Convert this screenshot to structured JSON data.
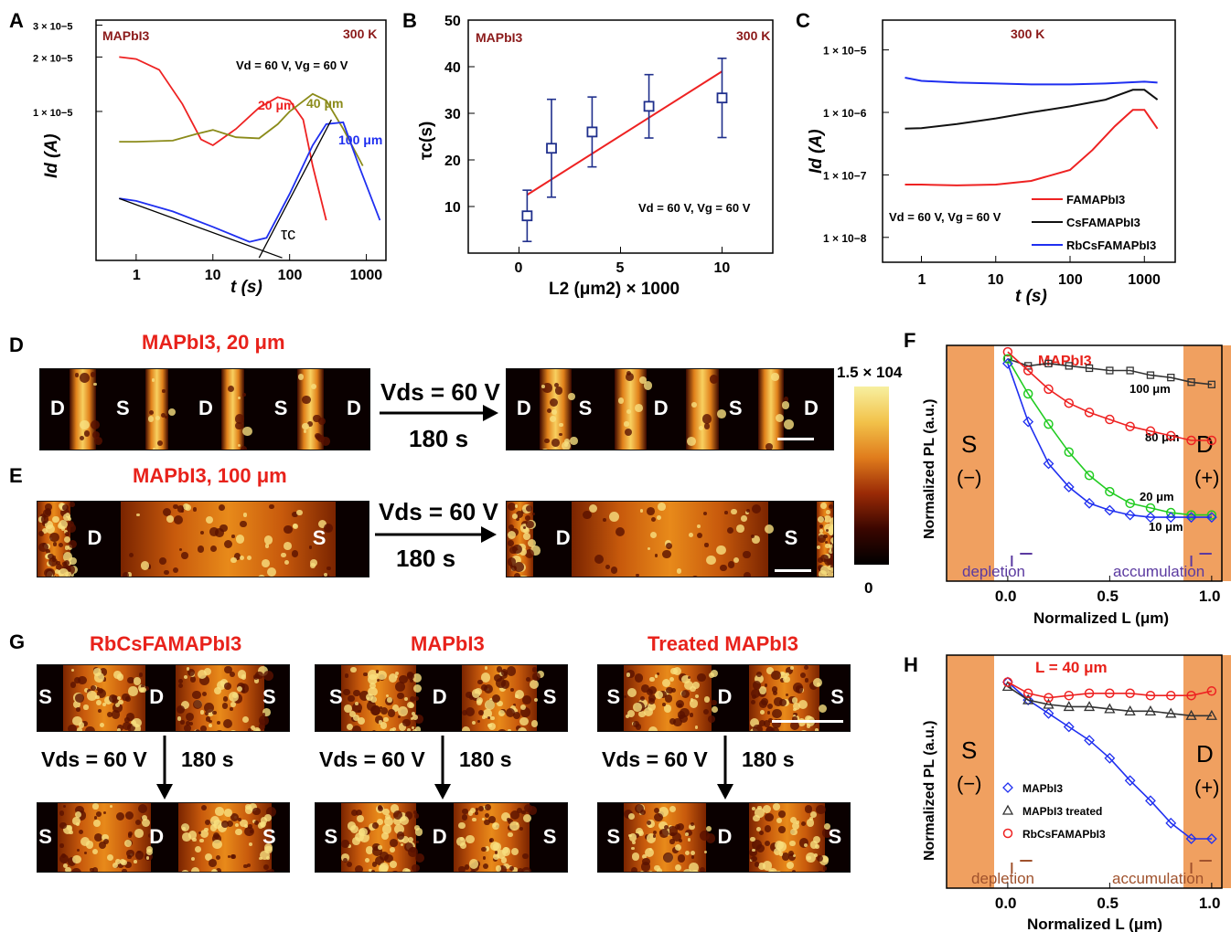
{
  "colors": {
    "red": "#ee2222",
    "olive": "#8b8b1a",
    "blue": "#1f2ff0",
    "black": "#111111",
    "darkred": "#8b1a1a",
    "purple": "#5b3aa0",
    "brown": "#a0522d",
    "orange": "#f0a060",
    "navy": "#1f2f8c"
  },
  "panels": {
    "A": "A",
    "B": "B",
    "C": "C",
    "D": "D",
    "E": "E",
    "F": "F",
    "G": "G",
    "H": "H"
  },
  "panelA": {
    "material": "MAPbI3",
    "temp": "300 K",
    "cond": "Vd = 60 V, Vg = 60 V",
    "xlabel": "t (s)",
    "ylabel": "Id (A)",
    "tau_label": "τc",
    "xticks": [
      "1",
      "10",
      "100",
      "1000"
    ],
    "yticks": [
      "3 × 10−5",
      "2 × 10−5",
      "1 × 10−5"
    ],
    "labels": {
      "s20": "20 μm",
      "s40": "40 μm",
      "s100": "100 μm"
    }
  },
  "panelB": {
    "material": "MAPbI3",
    "temp": "300 K",
    "cond": "Vd = 60 V, Vg = 60 V",
    "xlabel": "L2 (μm2) × 1000",
    "ylabel": "τc(s)",
    "xticks": [
      "0",
      "5",
      "10"
    ],
    "yticks": [
      "10",
      "20",
      "30",
      "40",
      "50"
    ]
  },
  "panelC": {
    "temp": "300 K",
    "cond": "Vd = 60 V, Vg = 60 V",
    "xlabel": "t (s)",
    "ylabel": "Id (A)",
    "xticks": [
      "1",
      "10",
      "100",
      "1000"
    ],
    "yticks": [
      "1 × 10−5",
      "1 × 10−6",
      "1 × 10−7",
      "1 × 10−8"
    ],
    "legend": [
      "FAMAPbI3",
      "CsFAMAPbI3",
      "RbCsFAMAPbI3"
    ]
  },
  "panelD": {
    "title": "MAPbI3, 20 μm",
    "before": [
      "D",
      "S",
      "D",
      "S",
      "D"
    ],
    "after": [
      "D",
      "S",
      "D",
      "S",
      "D"
    ],
    "arrow_top": "Vds = 60 V",
    "arrow_bottom": "180 s"
  },
  "panelE": {
    "title": "MAPbI3, 100 μm",
    "before": [
      "D",
      "S"
    ],
    "after": [
      "D",
      "S"
    ],
    "arrow_top": "Vds = 60 V",
    "arrow_bottom": "180 s"
  },
  "colorbar": {
    "max": "1.5 × 104",
    "min": "0"
  },
  "panelF": {
    "title": "MAPbI3",
    "left": "S",
    "left_sign": "(−)",
    "right": "D",
    "right_sign": "(+)",
    "ylabel": "Normalized PL (a.u.)",
    "xlabel": "Normalized L (μm)",
    "xticks": [
      "0.0",
      "0.5",
      "1.0"
    ],
    "depletion": "depletion",
    "accumulation": "accumulation",
    "series": [
      "100 μm",
      "80 μm",
      "20 μm",
      "10 μm"
    ]
  },
  "panelG": {
    "titles": [
      "RbCsFAMAPbI3",
      "MAPbI3",
      "Treated MAPbI3"
    ],
    "arrow_label": "Vds = 60 V",
    "time": "180 s",
    "letters": [
      "S",
      "D",
      "S"
    ]
  },
  "panelH": {
    "title": "L = 40 μm",
    "left": "S",
    "left_sign": "(−)",
    "right": "D",
    "right_sign": "(+)",
    "ylabel": "Normalized PL (a.u.)",
    "xlabel": "Normalized L (μm)",
    "xticks": [
      "0.0",
      "0.5",
      "1.0"
    ],
    "depletion": "depletion",
    "accumulation": "accumulation",
    "legend": [
      "MAPbI3",
      "MAPbI3 treated",
      "RbCsFAMAPbI3"
    ]
  },
  "chart_data": [
    {
      "panel": "A",
      "type": "line",
      "title": "MAPbI3",
      "xlabel": "t (s)",
      "ylabel": "Id (A)",
      "xscale": "log",
      "yscale": "log",
      "xlim": [
        0.3,
        1800
      ],
      "series": [
        {
          "name": "20 μm",
          "t": [
            0.6,
            1,
            2,
            4,
            7,
            10,
            20,
            40,
            70,
            100,
            150,
            200,
            300
          ],
          "I": [
            2e-05,
            1.95e-05,
            1.7e-05,
            1.1e-05,
            7e-06,
            6.5e-06,
            8e-06,
            1.05e-05,
            1.2e-05,
            1.15e-05,
            9e-06,
            5e-06,
            2.5e-06
          ]
        },
        {
          "name": "40 μm",
          "t": [
            0.6,
            1,
            3,
            6,
            10,
            20,
            40,
            70,
            100,
            200,
            300,
            500,
            900
          ],
          "I": [
            6.8e-06,
            6.8e-06,
            6.9e-06,
            7.5e-06,
            7.9e-06,
            7.2e-06,
            7.1e-06,
            8.5e-06,
            1e-05,
            1.25e-05,
            1.15e-05,
            8e-06,
            5e-06
          ]
        },
        {
          "name": "100 μm",
          "t": [
            0.6,
            1,
            3,
            10,
            30,
            50,
            100,
            200,
            300,
            500,
            800,
            1500
          ],
          "I": [
            3.3e-06,
            3.2e-06,
            2.8e-06,
            2.3e-06,
            1.9e-06,
            2e-06,
            3.5e-06,
            6.5e-06,
            8.5e-06,
            8.7e-06,
            5e-06,
            2.5e-06
          ]
        }
      ]
    },
    {
      "panel": "B",
      "type": "scatter",
      "title": "MAPbI3",
      "xlabel": "L2 (μm2) × 1000",
      "ylabel": "τc(s)",
      "xlim": [
        -2.5,
        12.5
      ],
      "ylim": [
        0,
        50
      ],
      "series": [
        {
          "name": "data",
          "x": [
            0.4,
            1.6,
            3.6,
            6.4,
            10
          ],
          "y": [
            8,
            22.5,
            26,
            31.5,
            33.3
          ],
          "err": [
            5.5,
            10.5,
            7.5,
            6.8,
            8.5
          ]
        }
      ],
      "fit": {
        "x": [
          0.4,
          10
        ],
        "y": [
          12.5,
          39
        ]
      }
    },
    {
      "panel": "C",
      "type": "line",
      "xlabel": "t (s)",
      "ylabel": "Id (A)",
      "xscale": "log",
      "yscale": "log",
      "series": [
        {
          "name": "FAMAPbI3",
          "t": [
            0.6,
            1,
            3,
            10,
            30,
            100,
            200,
            400,
            700,
            1000,
            1500
          ],
          "I": [
            7e-08,
            7e-08,
            6.8e-08,
            7e-08,
            8e-08,
            1.2e-07,
            2.5e-07,
            6e-07,
            1.1e-06,
            1.1e-06,
            5.5e-07
          ]
        },
        {
          "name": "CsFAMAPbI3",
          "t": [
            0.6,
            1,
            3,
            10,
            30,
            100,
            300,
            700,
            1000,
            1500
          ],
          "I": [
            5.5e-07,
            5.6e-07,
            6.5e-07,
            8e-07,
            1e-06,
            1.25e-06,
            1.6e-06,
            2.3e-06,
            2.3e-06,
            1.6e-06
          ]
        },
        {
          "name": "RbCsFAMAPbI3",
          "t": [
            0.6,
            1,
            3,
            10,
            30,
            100,
            300,
            1000,
            1500
          ],
          "I": [
            3.6e-06,
            3.2e-06,
            3e-06,
            2.9e-06,
            2.8e-06,
            2.8e-06,
            2.9e-06,
            3.1e-06,
            3e-06
          ]
        }
      ]
    },
    {
      "panel": "F",
      "type": "scatter",
      "xlabel": "Normalized L (μm)",
      "ylabel": "Normalized PL (a.u.)",
      "xlim": [
        -0.3,
        1.05
      ],
      "series": [
        {
          "name": "100 μm",
          "x": [
            0,
            0.1,
            0.2,
            0.3,
            0.4,
            0.5,
            0.6,
            0.7,
            0.8,
            0.9,
            1.0
          ],
          "y": [
            0.95,
            0.92,
            0.93,
            0.92,
            0.91,
            0.9,
            0.9,
            0.88,
            0.87,
            0.85,
            0.84
          ]
        },
        {
          "name": "80 μm",
          "x": [
            0,
            0.1,
            0.2,
            0.3,
            0.4,
            0.5,
            0.6,
            0.7,
            0.8,
            0.9,
            1.0
          ],
          "y": [
            0.98,
            0.9,
            0.82,
            0.76,
            0.72,
            0.69,
            0.66,
            0.64,
            0.62,
            0.6,
            0.6
          ]
        },
        {
          "name": "20 μm",
          "x": [
            0,
            0.1,
            0.2,
            0.3,
            0.4,
            0.5,
            0.6,
            0.7,
            0.8,
            0.9,
            1.0
          ],
          "y": [
            0.95,
            0.8,
            0.67,
            0.55,
            0.45,
            0.38,
            0.33,
            0.31,
            0.29,
            0.28,
            0.28
          ]
        },
        {
          "name": "10 μm",
          "x": [
            0,
            0.1,
            0.2,
            0.3,
            0.4,
            0.5,
            0.6,
            0.7,
            0.8,
            0.9,
            1.0
          ],
          "y": [
            0.93,
            0.68,
            0.5,
            0.4,
            0.33,
            0.3,
            0.28,
            0.27,
            0.27,
            0.27,
            0.27
          ]
        }
      ]
    },
    {
      "panel": "H",
      "type": "scatter",
      "xlabel": "Normalized L (μm)",
      "ylabel": "Normalized PL (a.u.)",
      "xlim": [
        -0.3,
        1.05
      ],
      "series": [
        {
          "name": "MAPbI3",
          "x": [
            0,
            0.1,
            0.2,
            0.3,
            0.4,
            0.5,
            0.6,
            0.7,
            0.8,
            0.9,
            1.0
          ],
          "y": [
            0.9,
            0.82,
            0.76,
            0.7,
            0.64,
            0.56,
            0.46,
            0.37,
            0.27,
            0.2,
            0.2
          ]
        },
        {
          "name": "MAPbI3 treated",
          "x": [
            0,
            0.1,
            0.2,
            0.3,
            0.4,
            0.5,
            0.6,
            0.7,
            0.8,
            0.9,
            1.0
          ],
          "y": [
            0.88,
            0.82,
            0.8,
            0.79,
            0.79,
            0.78,
            0.77,
            0.77,
            0.76,
            0.75,
            0.75
          ]
        },
        {
          "name": "RbCsFAMAPbI3",
          "x": [
            0,
            0.1,
            0.2,
            0.3,
            0.4,
            0.5,
            0.6,
            0.7,
            0.8,
            0.9,
            1.0
          ],
          "y": [
            0.9,
            0.85,
            0.83,
            0.84,
            0.85,
            0.85,
            0.85,
            0.84,
            0.84,
            0.84,
            0.86
          ]
        }
      ]
    }
  ]
}
